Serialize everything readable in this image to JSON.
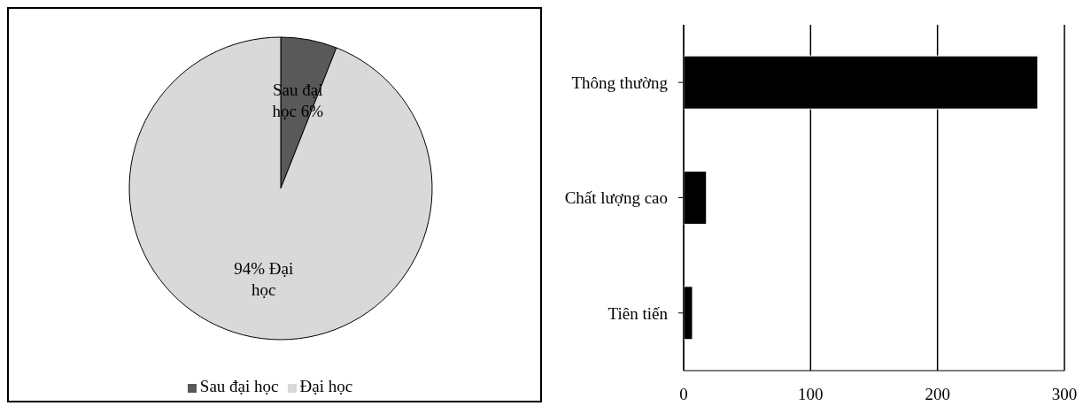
{
  "chart_data": [
    {
      "type": "pie",
      "categories": [
        "Sau đại học",
        "Đại học"
      ],
      "values": [
        6,
        94
      ],
      "colors": [
        "#595959",
        "#d9d9d9"
      ],
      "value_labels": [
        "Sau đại học 6%",
        "94% Đại học"
      ],
      "legend": "bottom"
    },
    {
      "type": "bar",
      "orientation": "horizontal",
      "categories": [
        "Thông thường",
        "Chất lượng cao",
        "Tiên tiến"
      ],
      "values": [
        279,
        18,
        7
      ],
      "color": "#000000",
      "xlim": [
        0,
        300
      ],
      "xticks": [
        0,
        100,
        200,
        300
      ],
      "grid": "x"
    }
  ]
}
